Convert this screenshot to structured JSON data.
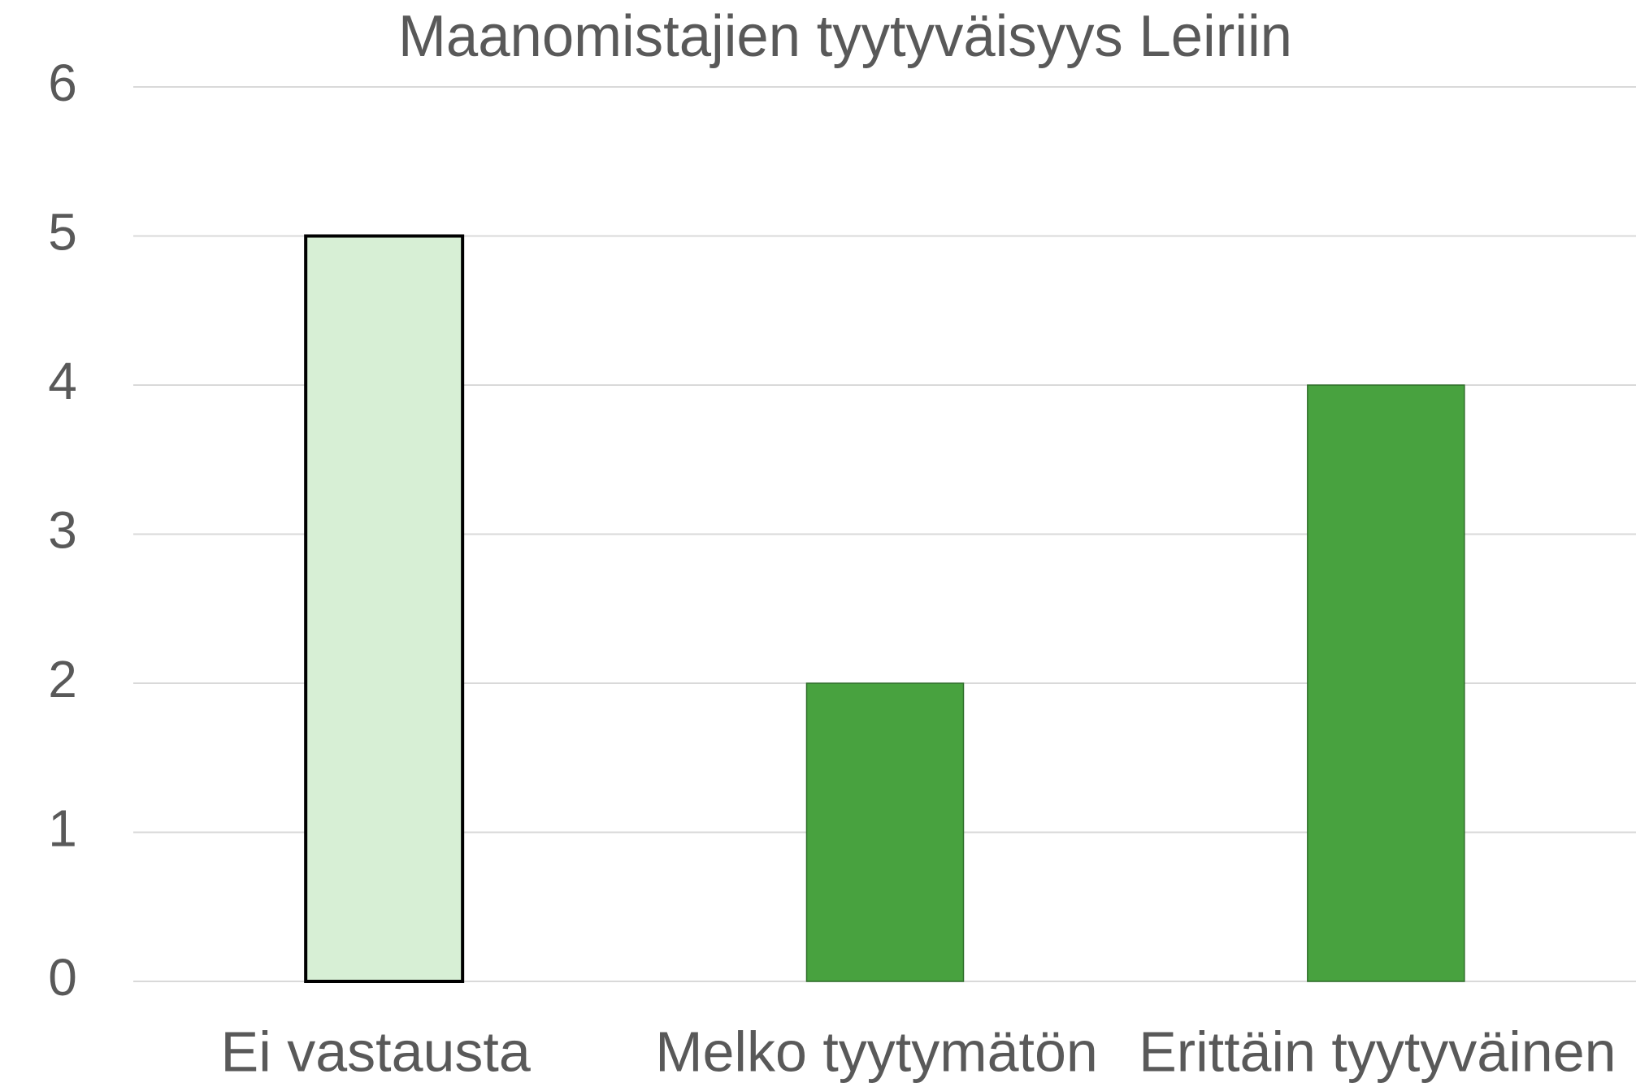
{
  "chart_data": {
    "type": "bar",
    "title": "Maanomistajien tyytyväisyys Leiriin",
    "categories": [
      "Ei vastausta",
      "Melko tyytymätön",
      "Erittäin tyytyväinen"
    ],
    "values": [
      5,
      2,
      4
    ],
    "colors": [
      "#d7efd5",
      "#48a23f",
      "#48a23f"
    ],
    "edgecolors": [
      "#000000",
      "#2f6e2a",
      "#2f6e2a"
    ],
    "ylim": [
      0,
      6
    ],
    "yticks": [
      0,
      1,
      2,
      3,
      4,
      5,
      6
    ],
    "grid": true
  }
}
